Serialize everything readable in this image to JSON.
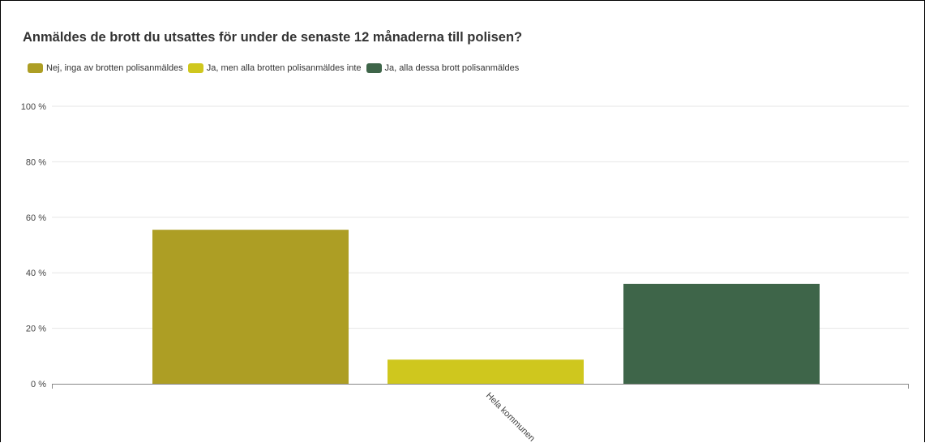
{
  "chart_data": {
    "type": "bar",
    "title": "Anmäldes de brott du utsattes för under de senaste 12 månaderna till polisen?",
    "categories": [
      "Hela kommunen"
    ],
    "series": [
      {
        "name": "Nej, inga av brotten polisanmäldes",
        "values": [
          55.5
        ],
        "color": "#ad9e24"
      },
      {
        "name": "Ja, men alla brotten polisanmäldes inte",
        "values": [
          8.7
        ],
        "color": "#cfc71e"
      },
      {
        "name": "Ja, alla dessa brott polisanmäldes",
        "values": [
          36.0
        ],
        "color": "#3e6549"
      }
    ],
    "y_ticks": [
      "0 %",
      "20 %",
      "40 %",
      "60 %",
      "80 %",
      "100 %"
    ],
    "ylim": [
      0,
      100
    ],
    "grid": true,
    "legend_position": "top-left"
  }
}
